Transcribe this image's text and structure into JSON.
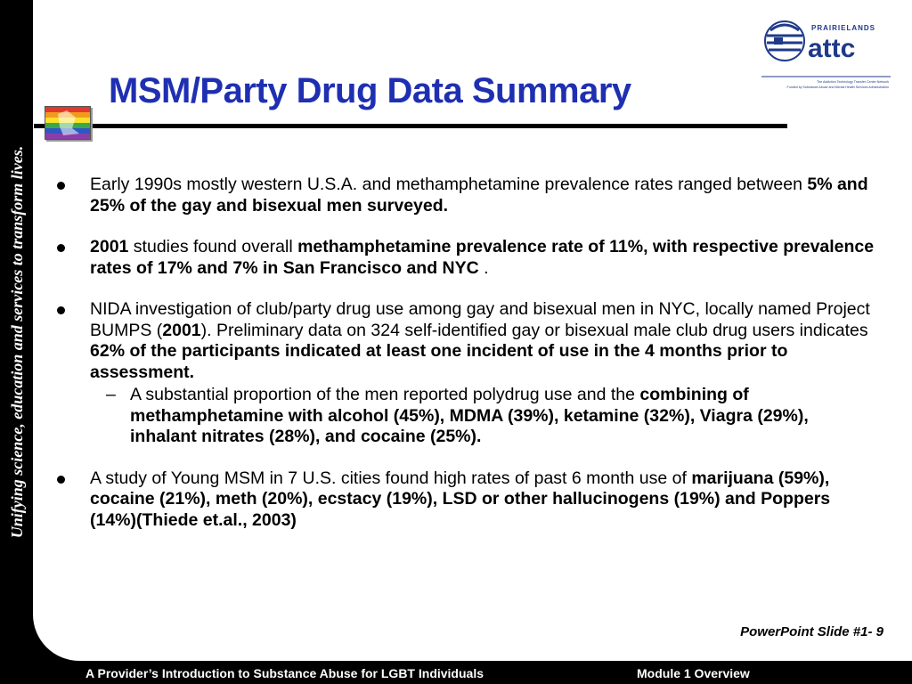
{
  "sidebar": {
    "tagline": "Unifying science, education and services to transform lives."
  },
  "header": {
    "title": "MSM/Party Drug Data Summary",
    "logo": {
      "org_small": "PRAIRIELANDS",
      "org": "attc",
      "caption_1": "The Addiction Technology Transfer Center Network",
      "caption_2": "Funded by Substance Abuse and Mental Health Services Administration"
    },
    "flag_icon": "rainbow-flag-icon"
  },
  "bullets": [
    {
      "text_1": "Early 1990s mostly western U.S.A. and methamphetamine prevalence rates ranged between ",
      "bold_1": "5% and 25% of the gay and bisexual men surveyed."
    },
    {
      "bold_1": "2001",
      "text_1": " studies found overall ",
      "bold_2": "methamphetamine prevalence rate of 11%, with respective prevalence rates of 17% and 7% in San Francisco and NYC",
      "text_2": " ."
    },
    {
      "text_1": "NIDA investigation of club/party drug use among gay and bisexual men in NYC, locally named Project BUMPS (",
      "bold_1": "2001",
      "text_2": "). Preliminary data on 324 self-identified gay or bisexual male club drug users indicates ",
      "bold_2": "62% of the participants indicated at least one incident of use in the 4 months prior to assessment.",
      "sub": {
        "dash": "–",
        "text_1": "A substantial proportion of the men reported polydrug use and the ",
        "bold_1": "combining of methamphetamine with alcohol (45%), MDMA (39%), ketamine (32%), Viagra (29%), inhalant nitrates (28%), and cocaine (25%)."
      }
    },
    {
      "text_1": "A study of Young MSM in 7 U.S. cities found high rates of past 6 month use of ",
      "bold_1": "marijuana (59%), cocaine (21%), meth (20%), ecstacy (19%), LSD or other hallucinogens (19%) and Poppers (14%)(Thiede et.al., 2003)"
    }
  ],
  "slide_number": "PowerPoint Slide #1- 9",
  "footer": {
    "left": "A Provider’s Introduction to Substance Abuse for LGBT Individuals",
    "right": "Module 1 Overview"
  },
  "colors": {
    "title": "#1f2fb2",
    "frame": "#000000",
    "logo_blue": "#1f3a8a"
  }
}
